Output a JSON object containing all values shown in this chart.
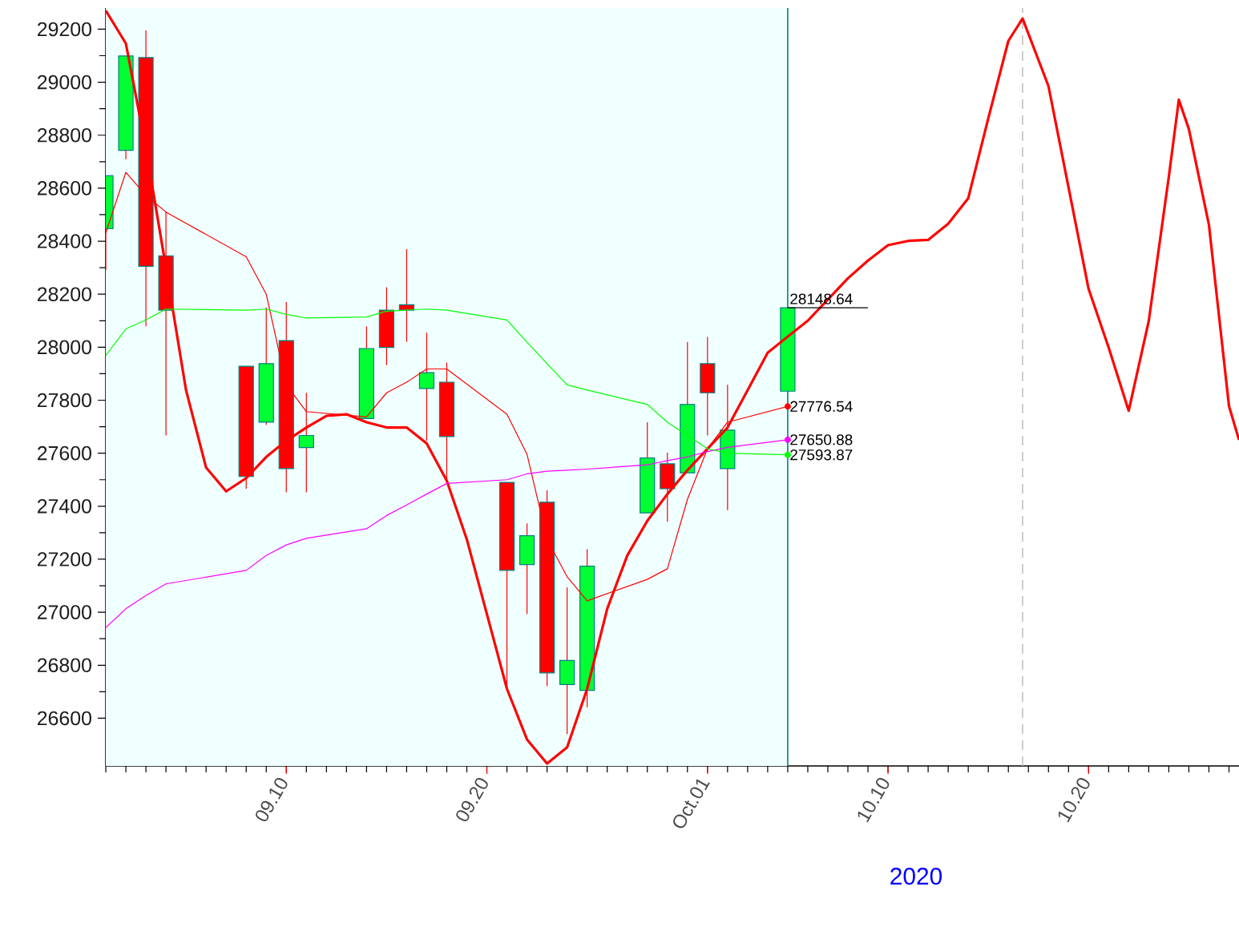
{
  "chart_data": {
    "type": "candlestick",
    "xlabel": "2020",
    "x": [
      "2020-09-01",
      "2020-09-02",
      "2020-09-03",
      "2020-09-04",
      "2020-09-08",
      "2020-09-09",
      "2020-09-10",
      "2020-09-11",
      "2020-09-14",
      "2020-09-15",
      "2020-09-16",
      "2020-09-17",
      "2020-09-18",
      "2020-09-21",
      "2020-09-22",
      "2020-09-23",
      "2020-09-24",
      "2020-09-25",
      "2020-09-28",
      "2020-09-29",
      "2020-09-30",
      "2020-10-01",
      "2020-10-02",
      "2020-10-05"
    ],
    "ohlc": [
      [
        28447,
        28647,
        28291,
        28647
      ],
      [
        28743,
        29099,
        28709,
        29099
      ],
      [
        29093,
        29196,
        28079,
        28305
      ],
      [
        28345,
        28512,
        27667,
        28140
      ],
      [
        27928,
        27928,
        27466,
        27512
      ],
      [
        27717,
        28150,
        27707,
        27938
      ],
      [
        28025,
        28170,
        27452,
        27542
      ],
      [
        27621,
        27828,
        27452,
        27667
      ],
      [
        27731,
        28079,
        27731,
        27995
      ],
      [
        28140,
        28226,
        27932,
        27999
      ],
      [
        28160,
        28370,
        28020,
        28140
      ],
      [
        27844,
        28055,
        27647,
        27904
      ],
      [
        27868,
        27942,
        27496,
        27663
      ],
      [
        27490,
        27490,
        26711,
        27158
      ],
      [
        27180,
        27335,
        26993,
        27289
      ],
      [
        27415,
        27460,
        26721,
        26771
      ],
      [
        26727,
        27093,
        26540,
        26818
      ],
      [
        26705,
        27238,
        26641,
        27174
      ],
      [
        27375,
        27717,
        27375,
        27582
      ],
      [
        27560,
        27602,
        27341,
        27466
      ],
      [
        27526,
        28019,
        27526,
        27784
      ],
      [
        27938,
        28039,
        27667,
        27828
      ],
      [
        27542,
        27858,
        27385,
        27687
      ],
      [
        27834,
        28148.64,
        27834,
        28148.64
      ]
    ],
    "colors": [
      "#00ff33",
      "#00ff33",
      "#ff0000",
      "#ff0000",
      "#ff0000",
      "#00ff33",
      "#ff0000",
      "#00ff33",
      "#00ff33",
      "#ff0000",
      "#ff0000",
      "#00ff33",
      "#ff0000",
      "#ff0000",
      "#00ff33",
      "#ff0000",
      "#00ff33",
      "#00ff33",
      "#00ff33",
      "#ff0000",
      "#00ff33",
      "#ff0000",
      "#00ff33",
      "#00ff33"
    ],
    "series": [
      {
        "type": "line",
        "color": "#ff0000",
        "x": [
          "2020-09-01",
          "2020-09-02",
          "2020-09-03",
          "2020-09-04",
          "2020-09-05",
          "2020-09-06",
          "2020-09-07",
          "2020-09-08",
          "2020-09-09",
          "2020-09-10",
          "2020-09-11",
          "2020-09-12",
          "2020-09-13",
          "2020-09-14",
          "2020-09-15",
          "2020-09-16",
          "2020-09-17",
          "2020-09-18",
          "2020-09-19",
          "2020-09-20",
          "2020-09-21",
          "2020-09-22",
          "2020-09-23",
          "2020-09-24",
          "2020-09-25",
          "2020-09-26",
          "2020-09-27",
          "2020-09-28",
          "2020-09-29",
          "2020-09-30",
          "2020-10-01",
          "2020-10-02",
          "2020-10-03",
          "2020-10-04",
          "2020-10-05",
          "2020-10-06",
          "2020-10-07",
          "2020-10-08",
          "2020-10-09",
          "2020-10-10",
          "2020-10-11",
          "2020-10-12",
          "2020-10-13",
          "2020-10-14",
          "2020-10-15",
          "2020-10-16",
          "2020-10-16T17:00",
          "2020-10-18",
          "2020-10-19",
          "2020-10-20",
          "2020-10-21",
          "2020-10-22",
          "2020-10-23",
          "2020-10-24",
          "2020-10-24T12:00",
          "2020-10-25",
          "2020-10-26",
          "2020-10-27",
          "2020-10-27T12:00"
        ],
        "values": [
          29270,
          29146,
          28750,
          28300,
          27838,
          27546,
          27456,
          27506,
          27586,
          27647,
          27697,
          27741,
          27747,
          27717,
          27697,
          27697,
          27637,
          27496,
          27275,
          26993,
          26711,
          26520,
          26429,
          26490,
          26711,
          27013,
          27214,
          27345,
          27446,
          27536,
          27617,
          27697,
          27838,
          27979,
          28040,
          28100,
          28180,
          28260,
          28327,
          28385,
          28401,
          28405,
          28466,
          28562,
          28864,
          29156,
          29240,
          28985,
          28603,
          28220,
          27999,
          27760,
          28099,
          28643,
          28934,
          28823,
          28462,
          27778,
          27650
        ]
      },
      {
        "type": "line",
        "color": "#ff0000",
        "x": [
          "2020-09-01",
          "2020-09-02",
          "2020-09-03",
          "2020-09-04",
          "2020-09-08",
          "2020-09-09",
          "2020-09-10",
          "2020-09-11",
          "2020-09-14",
          "2020-09-15",
          "2020-09-16",
          "2020-09-17",
          "2020-09-18",
          "2020-09-21",
          "2020-09-22",
          "2020-09-23",
          "2020-09-24",
          "2020-09-25",
          "2020-09-28",
          "2020-09-29",
          "2020-09-30",
          "2020-10-01",
          "2020-10-02",
          "2020-10-05"
        ],
        "values": [
          28432,
          28660,
          28573,
          28510,
          28341,
          28200,
          27858,
          27757,
          27737,
          27828,
          27868,
          27918,
          27918,
          27747,
          27596,
          27275,
          27134,
          27043,
          27124,
          27164,
          27426,
          27617,
          27717,
          27776.54
        ],
        "value_labels": [
          null,
          null,
          null,
          null,
          null,
          null,
          null,
          null,
          null,
          null,
          null,
          null,
          null,
          null,
          null,
          null,
          null,
          null,
          null,
          null,
          null,
          null,
          null,
          "27776.54"
        ]
      },
      {
        "type": "line",
        "color": "#ff00ff",
        "x": [
          "2020-09-01",
          "2020-09-02",
          "2020-09-03",
          "2020-09-04",
          "2020-09-08",
          "2020-09-09",
          "2020-09-10",
          "2020-09-11",
          "2020-09-14",
          "2020-09-15",
          "2020-09-16",
          "2020-09-17",
          "2020-09-18",
          "2020-09-21",
          "2020-09-22",
          "2020-09-23",
          "2020-09-24",
          "2020-09-25",
          "2020-09-28",
          "2020-09-29",
          "2020-09-30",
          "2020-10-01",
          "2020-10-02",
          "2020-10-05"
        ],
        "values": [
          26942,
          27013,
          27063,
          27107,
          27158,
          27214,
          27254,
          27279,
          27315,
          27365,
          27405,
          27446,
          27486,
          27500,
          27522,
          27532,
          27536,
          27540,
          27556,
          27572,
          27586,
          27606,
          27622,
          27650.88
        ],
        "value_labels": [
          null,
          null,
          null,
          null,
          null,
          null,
          null,
          null,
          null,
          null,
          null,
          null,
          null,
          null,
          null,
          null,
          null,
          null,
          null,
          null,
          null,
          null,
          null,
          "27650.88"
        ]
      },
      {
        "type": "line",
        "color": "#00ff00",
        "x": [
          "2020-09-01",
          "2020-09-02",
          "2020-09-03",
          "2020-09-04",
          "2020-09-08",
          "2020-09-09",
          "2020-09-10",
          "2020-09-11",
          "2020-09-14",
          "2020-09-15",
          "2020-09-16",
          "2020-09-17",
          "2020-09-18",
          "2020-09-21",
          "2020-09-22",
          "2020-09-23",
          "2020-09-24",
          "2020-09-25",
          "2020-09-28",
          "2020-09-29",
          "2020-09-30",
          "2020-10-01",
          "2020-10-02",
          "2020-10-05"
        ],
        "values": [
          27969,
          28069,
          28103,
          28144,
          28140,
          28144,
          28124,
          28110,
          28114,
          28136,
          28140,
          28144,
          28140,
          28103,
          28019,
          27938,
          27858,
          27838,
          27784,
          27717,
          27667,
          27617,
          27600,
          27593.87
        ],
        "value_labels": [
          null,
          null,
          null,
          null,
          null,
          null,
          null,
          null,
          null,
          null,
          null,
          null,
          null,
          null,
          null,
          null,
          null,
          null,
          null,
          null,
          null,
          null,
          null,
          "27593.87"
        ]
      }
    ],
    "xlim": [
      "2020-09-01",
      "2020-10-27T12:00"
    ],
    "ylim": [
      26420,
      29280
    ],
    "xticks": [
      {
        "value": "2020-09-10",
        "label": "09.10"
      },
      {
        "value": "2020-09-20",
        "label": "09.20"
      },
      {
        "value": "2020-10-01",
        "label": "Oct.01"
      },
      {
        "value": "2020-10-10",
        "label": "10.10"
      },
      {
        "value": "2020-10-20",
        "label": "10.20"
      }
    ],
    "yticks": [
      26600,
      26800,
      27000,
      27200,
      27400,
      27600,
      27800,
      28000,
      28200,
      28400,
      28600,
      28800,
      29000,
      29200
    ],
    "ref_lines": [
      {
        "axis": "x",
        "value": "2020-10-05",
        "color": "#008080",
        "line_style": "solid"
      },
      {
        "axis": "x",
        "value": "2020-10-16T17:00",
        "color": "#c0c0c0",
        "line_style": "dashed"
      }
    ],
    "bands": [
      {
        "axis": "x",
        "from": "2020-09-01",
        "to": "2020-10-05",
        "color": "#f0ffff"
      }
    ],
    "annotations": [
      {
        "text": "28148.64",
        "x": "2020-10-05",
        "y": 28148.64
      }
    ]
  }
}
